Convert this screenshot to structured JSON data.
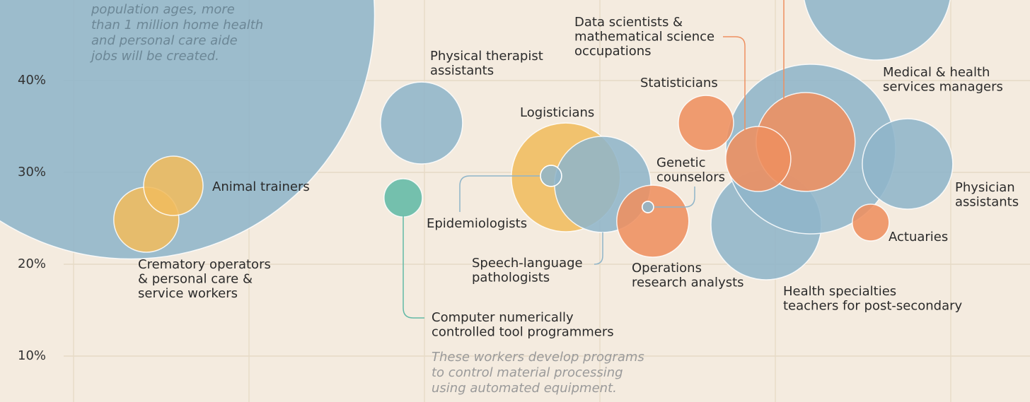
{
  "chart_data": {
    "type": "bubble",
    "ylim": [
      5,
      48.77
    ],
    "yticks": [
      {
        "value": 10,
        "label": "10%"
      },
      {
        "value": 20,
        "label": "20%"
      },
      {
        "value": 30,
        "label": "30%"
      },
      {
        "value": 40,
        "label": "40%"
      }
    ],
    "xlim": [
      -0.419,
      5.452
    ],
    "grid": true,
    "x": [
      0.327,
      4.581,
      3.948,
      4.202,
      4.754,
      1.984,
      1.879,
      0.415,
      0.569,
      2.806,
      3.016,
      3.302,
      3.274,
      2.722,
      3.605,
      4.173,
      3.903,
      4.544
    ],
    "values": [
      47.08,
      50.31,
      24.31,
      32.54,
      30.92,
      35.38,
      27.23,
      24.85,
      28.54,
      29.46,
      28.69,
      24.69,
      26.23,
      29.62,
      35.38,
      33.31,
      31.46,
      24.54
    ],
    "sizes": [
      26.5,
      8.08,
      6.0,
      9.23,
      4.92,
      4.46,
      2.08,
      3.54,
      3.23,
      5.92,
      5.23,
      3.92,
      0.62,
      1.15,
      3.0,
      5.38,
      3.54,
      2.0
    ],
    "colors": [
      "#8fb5c9",
      "#8fb5c9",
      "#8fb5c9",
      "#8fb5c9",
      "#8fb5c9",
      "#8fb5c9",
      "#62b9a6",
      "#f0bc5e",
      "#f0bc5e",
      "#f0bc5e",
      "#8fb5c9",
      "#ee9060",
      "#8fb5c9",
      "#8fb5c9",
      "#ee9060",
      "#ee9060",
      "#ee9060",
      "#ee9060"
    ],
    "labels": [
      null,
      null,
      [
        "Health specialties",
        "teachers for post-secondary"
      ],
      [
        "Medical & health",
        "services managers"
      ],
      [
        "Physician",
        "assistants"
      ],
      [
        "Physical therapist",
        "assistants"
      ],
      [
        "Computer numerically",
        "controlled tool programmers"
      ],
      [
        "Crematory operators",
        "& personal care &",
        "service workers"
      ],
      [
        "Animal trainers"
      ],
      [
        "Logisticians"
      ],
      [
        "Speech-language",
        "pathologists"
      ],
      [
        "Operations",
        "research analysts"
      ],
      [
        "Genetic",
        "counselors"
      ],
      [
        "Epidemiologists"
      ],
      [
        "Statisticians"
      ],
      null,
      [
        "Data scientists &",
        "mathematical science",
        "occupations"
      ],
      [
        "Actuaries"
      ]
    ],
    "annotations": [
      [
        "population ages, more",
        "than 1 million home health",
        "and personal care aide",
        "jobs will be created."
      ],
      [
        "These workers develop programs",
        "to control material processing",
        "using automated equipment."
      ]
    ]
  }
}
